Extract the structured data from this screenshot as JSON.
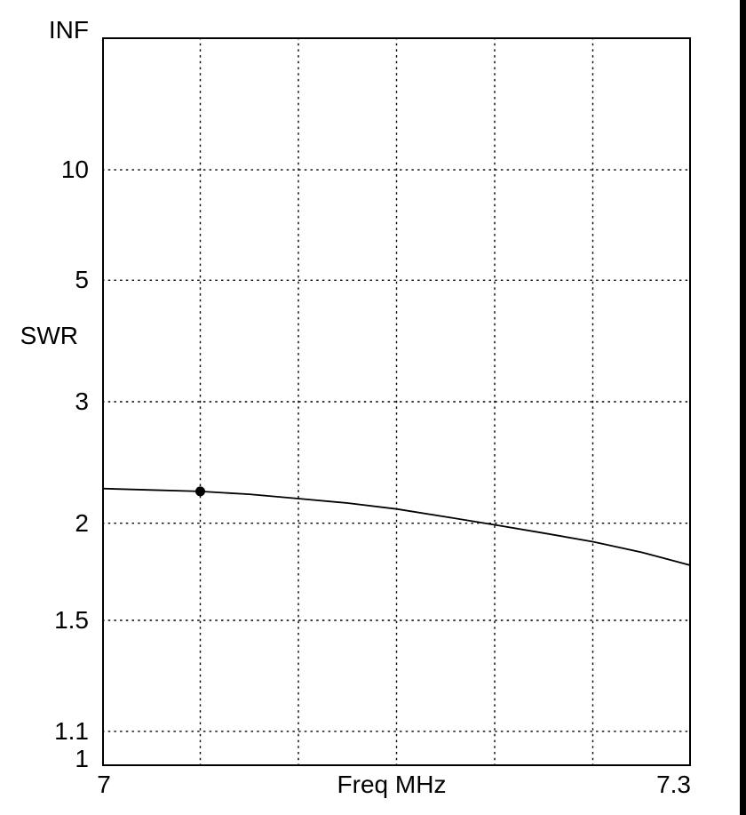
{
  "page": {
    "background_color": "#ffffff",
    "ink_color": "#000000",
    "scan_strip_color": "#000000"
  },
  "chart_data": {
    "type": "line",
    "title": "",
    "xlabel": "Freq MHz",
    "ylabel": "SWR",
    "x_range": [
      7.0,
      7.3
    ],
    "x_tick_labels": [
      "7",
      "7.3"
    ],
    "x_gridlines": [
      7.05,
      7.1,
      7.15,
      7.2,
      7.25
    ],
    "y_scale": "swr-reflection-coefficient",
    "y_range_note": "bottom=1, top=INF; y position proportional to (SWR-1)/(SWR+1)",
    "grid_on": true,
    "legend": "none",
    "y_ticks": [
      {
        "label": "INF",
        "value": null,
        "gridline": false
      },
      {
        "label": "10",
        "value": 10,
        "gridline": true
      },
      {
        "label": "5",
        "value": 5,
        "gridline": true
      },
      {
        "label": "3",
        "value": 3,
        "gridline": true
      },
      {
        "label": "2",
        "value": 2,
        "gridline": true
      },
      {
        "label": "1.5",
        "value": 1.5,
        "gridline": true
      },
      {
        "label": "1.1",
        "value": 1.1,
        "gridline": true
      },
      {
        "label": "1",
        "value": 1,
        "gridline": false
      }
    ],
    "series": [
      {
        "name": "SWR",
        "x": [
          7.0,
          7.025,
          7.05,
          7.075,
          7.1,
          7.125,
          7.15,
          7.175,
          7.2,
          7.225,
          7.25,
          7.275,
          7.3
        ],
        "values": [
          2.23,
          2.22,
          2.21,
          2.19,
          2.16,
          2.13,
          2.09,
          2.04,
          1.99,
          1.94,
          1.89,
          1.83,
          1.76
        ]
      }
    ],
    "marker": {
      "x": 7.05,
      "swr": 2.21,
      "shape": "filled-circle",
      "color": "#000000"
    },
    "line_color": "#000000",
    "grid_color": "#000000",
    "frame_color": "#000000"
  }
}
